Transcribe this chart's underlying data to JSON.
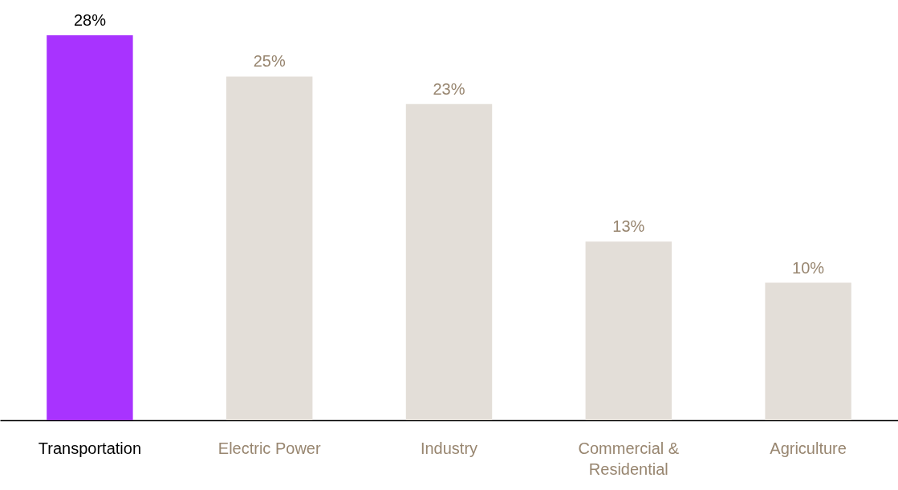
{
  "chart_data": {
    "type": "bar",
    "categories": [
      "Transportation",
      "Electric Power",
      "Industry",
      "Commercial & Residential",
      "Agriculture"
    ],
    "values": [
      28,
      25,
      23,
      13,
      10
    ],
    "value_labels": [
      "28%",
      "25%",
      "23%",
      "13%",
      "10%"
    ],
    "colors": [
      "#a833ff",
      "#e3ded8",
      "#e3ded8",
      "#e3ded8",
      "#e3ded8"
    ]
  }
}
